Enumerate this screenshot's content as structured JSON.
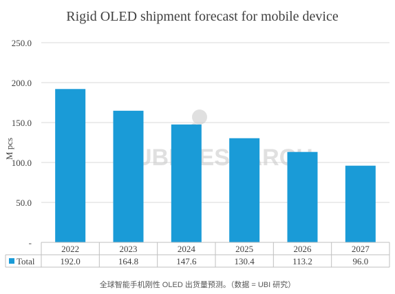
{
  "chart_data": {
    "type": "bar",
    "title": "Rigid OLED shipment forecast for mobile device",
    "ylabel": "M pcs",
    "xlabel": "",
    "categories": [
      "2022",
      "2023",
      "2024",
      "2025",
      "2026",
      "2027"
    ],
    "series": [
      {
        "name": "Total",
        "values": [
          192.0,
          164.8,
          147.6,
          130.4,
          113.2,
          96.0
        ],
        "color": "#1a9bd7"
      }
    ],
    "table_values": [
      "192.0",
      "164.8",
      "147.6",
      "130.4",
      "113.2",
      "96.0"
    ],
    "yticks": [
      "-",
      "50.0",
      "100.0",
      "150.0",
      "200.0",
      "250.0"
    ],
    "ylim": [
      0,
      250
    ],
    "grid": true,
    "legend": "data table below chart"
  },
  "watermark": "UBI RESEARCH",
  "caption": "全球智能手机刚性 OLED 出货量预测。（数据 = UBI 研究）",
  "colors": {
    "bar": "#1a9bd7",
    "grid": "#d9d9d9",
    "text": "#404040",
    "watermark": "#c8c8c8"
  }
}
